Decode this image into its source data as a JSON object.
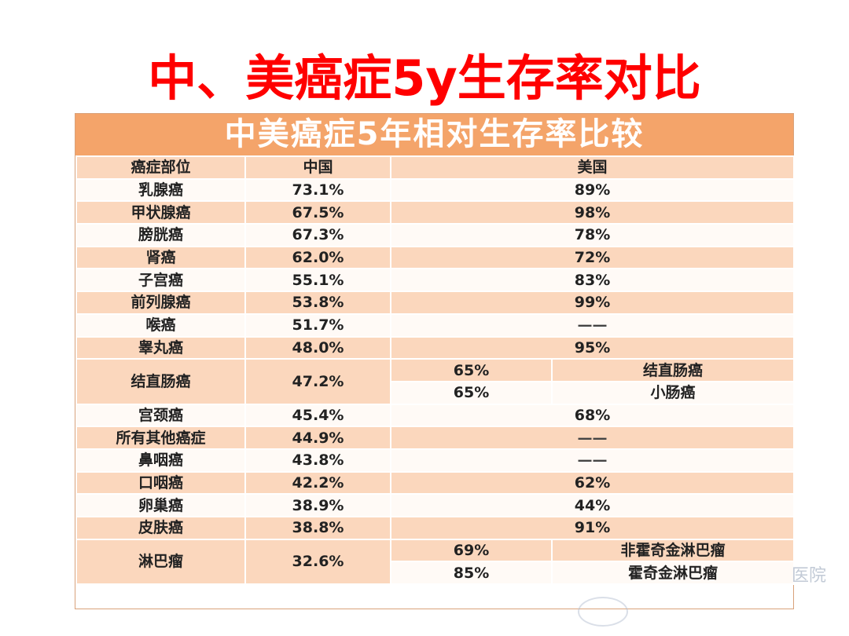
{
  "slide": {
    "title": "中、美癌症5y生存率对比"
  },
  "table": {
    "title": "中美癌症5年相对生存率比较",
    "headers": {
      "site": "癌症部位",
      "china": "中国",
      "usa": "美国"
    },
    "rows": [
      {
        "site": "乳腺癌",
        "china": "73.1%",
        "usa": "89%"
      },
      {
        "site": "甲状腺癌",
        "china": "67.5%",
        "usa": "98%"
      },
      {
        "site": "膀胱癌",
        "china": "67.3%",
        "usa": "78%"
      },
      {
        "site": "肾癌",
        "china": "62.0%",
        "usa": "72%"
      },
      {
        "site": "子宫癌",
        "china": "55.1%",
        "usa": "83%"
      },
      {
        "site": "前列腺癌",
        "china": "53.8%",
        "usa": "99%"
      },
      {
        "site": "喉癌",
        "china": "51.7%",
        "usa": "——"
      },
      {
        "site": "睾丸癌",
        "china": "48.0%",
        "usa": "95%"
      },
      {
        "site": "结直肠癌",
        "china": "47.2%",
        "usa_split": [
          {
            "value": "65%",
            "label": "结直肠癌"
          },
          {
            "value": "65%",
            "label": "小肠癌"
          }
        ]
      },
      {
        "site": "宫颈癌",
        "china": "45.4%",
        "usa": "68%"
      },
      {
        "site": "所有其他癌症",
        "china": "44.9%",
        "usa": "——"
      },
      {
        "site": "鼻咽癌",
        "china": "43.8%",
        "usa": "——"
      },
      {
        "site": "口咽癌",
        "china": "42.2%",
        "usa": "62%"
      },
      {
        "site": "卵巢癌",
        "china": "38.9%",
        "usa": "44%"
      },
      {
        "site": "皮肤癌",
        "china": "38.8%",
        "usa": "91%"
      },
      {
        "site": "淋巴瘤",
        "china": "32.6%",
        "usa_split": [
          {
            "value": "69%",
            "label": "非霍奇金淋巴瘤"
          },
          {
            "value": "85%",
            "label": "霍奇金淋巴瘤"
          }
        ]
      }
    ]
  },
  "watermark": {
    "text": "医院"
  }
}
